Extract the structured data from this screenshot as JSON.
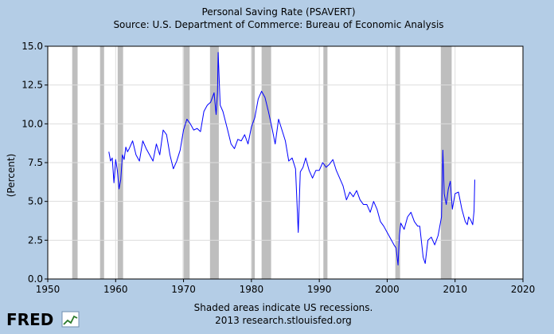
{
  "chart_data": {
    "type": "line",
    "title": "Personal Saving Rate (PSAVERT)",
    "subtitle": "Source: U.S. Department of Commerce: Bureau of Economic Analysis",
    "xlabel": "",
    "ylabel": "(Percent)",
    "xlim": [
      1950,
      2020
    ],
    "ylim": [
      0.0,
      15.0
    ],
    "x_ticks": [
      "1950",
      "1960",
      "1970",
      "1980",
      "1990",
      "2000",
      "2010",
      "2020"
    ],
    "y_ticks": [
      "0.0",
      "2.5",
      "5.0",
      "7.5",
      "10.0",
      "12.5",
      "15.0"
    ],
    "grid": true,
    "footnote": "Shaded areas indicate US recessions.",
    "credit": "2013 research.stlouisfed.org",
    "brand": "FRED",
    "line_color": "#0000ff",
    "recession_color": "#bebebe",
    "recessions": [
      [
        1953.6,
        1954.4
      ],
      [
        1957.7,
        1958.3
      ],
      [
        1960.3,
        1961.1
      ],
      [
        1969.9,
        1970.9
      ],
      [
        1973.9,
        1975.2
      ],
      [
        1980.0,
        1980.5
      ],
      [
        1981.5,
        1982.9
      ],
      [
        1990.6,
        1991.2
      ],
      [
        2001.2,
        2001.9
      ],
      [
        2007.9,
        2009.5
      ]
    ],
    "series": [
      {
        "name": "Personal Saving Rate",
        "x": [
          1959.0,
          1959.25,
          1959.5,
          1959.75,
          1960.0,
          1960.25,
          1960.5,
          1960.75,
          1961.0,
          1961.25,
          1961.5,
          1961.75,
          1962.0,
          1962.5,
          1963.0,
          1963.5,
          1964.0,
          1964.5,
          1965.0,
          1965.5,
          1966.0,
          1966.5,
          1967.0,
          1967.5,
          1968.0,
          1968.5,
          1969.0,
          1969.5,
          1970.0,
          1970.5,
          1971.0,
          1971.5,
          1972.0,
          1972.5,
          1973.0,
          1973.5,
          1974.0,
          1974.5,
          1974.8,
          1975.0,
          1975.1,
          1975.4,
          1975.8,
          1976.5,
          1977.0,
          1977.5,
          1978.0,
          1978.5,
          1979.0,
          1979.5,
          1980.0,
          1980.5,
          1981.0,
          1981.5,
          1982.0,
          1982.5,
          1983.0,
          1983.5,
          1984.0,
          1984.5,
          1985.0,
          1985.5,
          1986.0,
          1986.5,
          1986.9,
          1987.2,
          1987.6,
          1988.0,
          1988.5,
          1989.0,
          1989.5,
          1990.0,
          1990.5,
          1991.0,
          1991.5,
          1992.0,
          1992.5,
          1993.0,
          1993.5,
          1994.0,
          1994.5,
          1995.0,
          1995.5,
          1996.0,
          1996.5,
          1997.0,
          1997.5,
          1998.0,
          1998.5,
          1999.0,
          1999.5,
          2000.0,
          2000.5,
          2001.0,
          2001.3,
          2001.6,
          2001.8,
          2002.0,
          2002.5,
          2003.0,
          2003.5,
          2004.0,
          2004.5,
          2004.8,
          2005.0,
          2005.3,
          2005.6,
          2006.0,
          2006.5,
          2007.0,
          2007.5,
          2008.0,
          2008.2,
          2008.4,
          2008.7,
          2009.0,
          2009.3,
          2009.6,
          2010.0,
          2010.5,
          2011.0,
          2011.5,
          2011.8,
          2012.0,
          2012.3,
          2012.6,
          2012.8,
          2012.9
        ],
        "values": [
          8.2,
          7.6,
          7.8,
          6.2,
          7.7,
          7.0,
          5.8,
          6.4,
          8.0,
          7.7,
          8.5,
          8.2,
          8.4,
          8.9,
          8.0,
          7.6,
          8.9,
          8.4,
          8.0,
          7.6,
          8.7,
          8.0,
          9.6,
          9.3,
          8.0,
          7.1,
          7.6,
          8.3,
          9.6,
          10.3,
          10.0,
          9.6,
          9.7,
          9.5,
          10.8,
          11.2,
          11.4,
          12.0,
          10.6,
          12.0,
          14.6,
          11.2,
          10.8,
          9.6,
          8.7,
          8.4,
          9.0,
          8.9,
          9.3,
          8.7,
          9.8,
          10.4,
          11.6,
          12.1,
          11.7,
          10.8,
          9.8,
          8.7,
          10.3,
          9.6,
          8.9,
          7.6,
          7.8,
          7.1,
          3.0,
          6.9,
          7.2,
          7.8,
          7.0,
          6.5,
          7.0,
          7.0,
          7.5,
          7.2,
          7.4,
          7.7,
          7.0,
          6.5,
          6.0,
          5.1,
          5.6,
          5.3,
          5.7,
          5.1,
          4.8,
          4.8,
          4.3,
          5.0,
          4.5,
          3.7,
          3.4,
          3.0,
          2.6,
          2.2,
          2.0,
          0.9,
          2.8,
          3.6,
          3.2,
          4.0,
          4.3,
          3.7,
          3.4,
          3.4,
          2.6,
          1.4,
          1.0,
          2.5,
          2.7,
          2.2,
          2.8,
          4.0,
          8.3,
          5.5,
          4.8,
          5.8,
          6.3,
          4.5,
          5.5,
          5.6,
          4.5,
          3.7,
          3.5,
          4.0,
          3.8,
          3.5,
          4.4,
          6.4
        ]
      }
    ]
  }
}
